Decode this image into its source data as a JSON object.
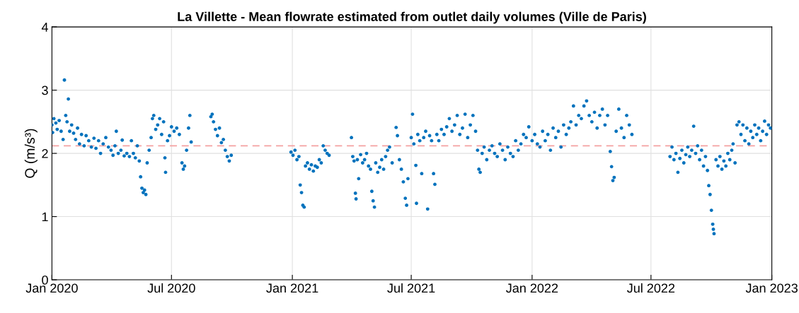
{
  "chart_data": {
    "type": "scatter",
    "title": "La Villette - Mean flowrate estimated from outlet daily volumes (Ville de Paris)",
    "ylabel": "Q (m/s³)",
    "x": [
      "2020-01-01",
      "2020-01-02",
      "2020-01-04",
      "2020-01-07",
      "2020-01-09",
      "2020-01-12",
      "2020-01-15",
      "2020-01-18",
      "2020-01-20",
      "2020-01-22",
      "2020-01-24",
      "2020-01-26",
      "2020-01-28",
      "2020-01-31",
      "2020-02-03",
      "2020-02-06",
      "2020-02-09",
      "2020-02-12",
      "2020-02-15",
      "2020-02-19",
      "2020-02-22",
      "2020-02-26",
      "2020-03-01",
      "2020-03-05",
      "2020-03-08",
      "2020-03-12",
      "2020-03-15",
      "2020-03-19",
      "2020-03-23",
      "2020-03-27",
      "2020-03-31",
      "2020-04-03",
      "2020-04-06",
      "2020-04-08",
      "2020-04-11",
      "2020-04-15",
      "2020-04-17",
      "2020-04-20",
      "2020-04-24",
      "2020-04-28",
      "2020-05-01",
      "2020-05-04",
      "2020-05-07",
      "2020-05-10",
      "2020-05-13",
      "2020-05-15",
      "2020-05-17",
      "2020-05-19",
      "2020-05-21",
      "2020-05-23",
      "2020-05-25",
      "2020-05-28",
      "2020-05-31",
      "2020-06-02",
      "2020-06-04",
      "2020-06-07",
      "2020-06-10",
      "2020-06-13",
      "2020-06-16",
      "2020-06-19",
      "2020-06-21",
      "2020-06-22",
      "2020-06-25",
      "2020-06-28",
      "2020-07-01",
      "2020-07-05",
      "2020-07-09",
      "2020-07-13",
      "2020-07-17",
      "2020-07-19",
      "2020-07-21",
      "2020-07-24",
      "2020-07-27",
      "2020-07-29",
      "2020-07-31",
      "2020-08-30",
      "2020-09-01",
      "2020-09-03",
      "2020-09-06",
      "2020-09-09",
      "2020-09-12",
      "2020-09-15",
      "2020-09-18",
      "2020-09-21",
      "2020-09-24",
      "2020-09-27",
      "2020-09-30",
      "2020-12-30",
      "2021-01-02",
      "2021-01-05",
      "2021-01-08",
      "2021-01-11",
      "2021-01-13",
      "2021-01-15",
      "2021-01-17",
      "2021-01-19",
      "2021-01-21",
      "2021-01-24",
      "2021-01-27",
      "2021-01-30",
      "2021-02-02",
      "2021-02-05",
      "2021-02-08",
      "2021-02-11",
      "2021-02-14",
      "2021-02-17",
      "2021-02-20",
      "2021-02-23",
      "2021-02-26",
      "2021-04-01",
      "2021-04-03",
      "2021-04-05",
      "2021-04-07",
      "2021-04-08",
      "2021-04-10",
      "2021-04-12",
      "2021-04-15",
      "2021-04-18",
      "2021-04-21",
      "2021-04-24",
      "2021-04-27",
      "2021-04-30",
      "2021-05-02",
      "2021-05-04",
      "2021-05-06",
      "2021-05-08",
      "2021-05-11",
      "2021-05-14",
      "2021-05-17",
      "2021-05-20",
      "2021-05-23",
      "2021-05-26",
      "2021-05-29",
      "2021-06-02",
      "2021-06-08",
      "2021-06-10",
      "2021-06-13",
      "2021-06-16",
      "2021-06-19",
      "2021-06-22",
      "2021-06-24",
      "2021-06-26",
      "2021-07-01",
      "2021-07-03",
      "2021-07-05",
      "2021-07-08",
      "2021-07-09",
      "2021-07-11",
      "2021-07-14",
      "2021-07-17",
      "2021-07-20",
      "2021-07-23",
      "2021-07-26",
      "2021-07-29",
      "2021-08-01",
      "2021-08-04",
      "2021-08-06",
      "2021-08-09",
      "2021-08-12",
      "2021-08-16",
      "2021-08-20",
      "2021-08-24",
      "2021-08-28",
      "2021-09-01",
      "2021-09-05",
      "2021-09-09",
      "2021-09-13",
      "2021-09-17",
      "2021-09-21",
      "2021-09-25",
      "2021-09-29",
      "2021-10-03",
      "2021-10-07",
      "2021-10-10",
      "2021-10-12",
      "2021-10-14",
      "2021-10-17",
      "2021-10-20",
      "2021-10-24",
      "2021-10-28",
      "2021-11-01",
      "2021-11-05",
      "2021-11-09",
      "2021-11-13",
      "2021-11-17",
      "2021-11-21",
      "2021-11-25",
      "2021-11-29",
      "2021-12-03",
      "2021-12-07",
      "2021-12-11",
      "2021-12-15",
      "2021-12-19",
      "2021-12-23",
      "2021-12-27",
      "2022-01-01",
      "2022-01-05",
      "2022-01-09",
      "2022-01-13",
      "2022-01-17",
      "2022-01-21",
      "2022-01-25",
      "2022-01-29",
      "2022-02-02",
      "2022-02-06",
      "2022-02-10",
      "2022-02-14",
      "2022-02-18",
      "2022-02-22",
      "2022-02-26",
      "2022-03-01",
      "2022-03-05",
      "2022-03-09",
      "2022-03-13",
      "2022-03-17",
      "2022-03-21",
      "2022-03-25",
      "2022-03-29",
      "2022-04-02",
      "2022-04-06",
      "2022-04-10",
      "2022-04-14",
      "2022-04-18",
      "2022-04-22",
      "2022-04-26",
      "2022-04-30",
      "2022-05-02",
      "2022-05-04",
      "2022-05-06",
      "2022-05-09",
      "2022-05-13",
      "2022-05-17",
      "2022-05-21",
      "2022-05-25",
      "2022-05-29",
      "2022-06-02",
      "2022-07-30",
      "2022-08-02",
      "2022-08-05",
      "2022-08-08",
      "2022-08-11",
      "2022-08-14",
      "2022-08-17",
      "2022-08-20",
      "2022-08-23",
      "2022-08-26",
      "2022-08-29",
      "2022-09-01",
      "2022-09-04",
      "2022-09-07",
      "2022-09-10",
      "2022-09-13",
      "2022-09-16",
      "2022-09-19",
      "2022-09-22",
      "2022-09-25",
      "2022-09-27",
      "2022-09-29",
      "2022-10-01",
      "2022-10-03",
      "2022-10-04",
      "2022-10-05",
      "2022-10-08",
      "2022-10-11",
      "2022-10-14",
      "2022-10-17",
      "2022-10-20",
      "2022-10-23",
      "2022-10-26",
      "2022-10-29",
      "2022-11-01",
      "2022-11-03",
      "2022-11-06",
      "2022-11-09",
      "2022-11-12",
      "2022-11-15",
      "2022-11-18",
      "2022-11-21",
      "2022-11-24",
      "2022-11-27",
      "2022-11-30",
      "2022-12-03",
      "2022-12-06",
      "2022-12-09",
      "2022-12-12",
      "2022-12-15",
      "2022-12-18",
      "2022-12-21",
      "2022-12-24",
      "2022-12-27",
      "2022-12-30"
    ],
    "series": [
      {
        "color": "#0072bd",
        "values": [
          2.45,
          2.33,
          2.55,
          2.48,
          2.38,
          2.52,
          2.35,
          2.22,
          3.16,
          2.6,
          2.5,
          2.86,
          2.35,
          2.45,
          2.32,
          2.22,
          2.4,
          2.15,
          2.3,
          2.12,
          2.28,
          2.2,
          2.1,
          2.24,
          2.08,
          2.2,
          2.0,
          2.15,
          2.25,
          2.1,
          2.05,
          1.97,
          2.12,
          2.35,
          2.0,
          2.05,
          2.21,
          1.96,
          2.0,
          1.95,
          2.2,
          2.0,
          1.93,
          2.12,
          1.88,
          1.63,
          1.45,
          1.38,
          1.42,
          1.35,
          1.85,
          2.05,
          2.25,
          2.55,
          2.6,
          2.38,
          2.45,
          2.55,
          2.3,
          2.5,
          1.93,
          1.7,
          2.2,
          2.28,
          2.42,
          2.35,
          2.4,
          2.3,
          1.85,
          1.75,
          1.8,
          2.05,
          2.4,
          2.6,
          2.18,
          2.58,
          2.62,
          2.5,
          2.38,
          2.28,
          2.4,
          2.17,
          2.22,
          2.05,
          1.95,
          1.88,
          1.97,
          2.02,
          1.97,
          2.05,
          1.9,
          1.95,
          1.5,
          1.38,
          1.18,
          1.15,
          1.8,
          1.85,
          1.75,
          1.82,
          1.72,
          1.8,
          1.78,
          1.9,
          1.85,
          2.12,
          2.05,
          2.0,
          1.97,
          2.25,
          1.95,
          1.88,
          1.37,
          1.28,
          1.9,
          1.6,
          1.98,
          1.85,
          1.9,
          2.0,
          1.8,
          1.75,
          1.4,
          1.25,
          1.15,
          1.85,
          1.7,
          1.78,
          1.9,
          1.75,
          1.95,
          2.05,
          2.1,
          1.85,
          2.41,
          2.28,
          1.9,
          1.75,
          1.55,
          1.29,
          1.18,
          1.6,
          2.25,
          2.62,
          2.15,
          1.81,
          1.21,
          2.3,
          2.2,
          1.68,
          2.25,
          2.35,
          1.12,
          2.28,
          2.2,
          1.68,
          1.51,
          2.3,
          2.2,
          2.38,
          2.3,
          2.42,
          2.55,
          2.35,
          2.45,
          2.6,
          2.3,
          2.4,
          2.62,
          2.25,
          2.45,
          2.6,
          2.35,
          2.05,
          1.75,
          1.7,
          2.0,
          2.1,
          1.9,
          2.05,
          2.12,
          2.0,
          1.95,
          2.15,
          2.05,
          1.9,
          2.1,
          2.0,
          1.95,
          2.2,
          2.05,
          2.15,
          2.3,
          2.25,
          2.42,
          2.2,
          2.3,
          2.15,
          2.1,
          2.35,
          2.2,
          2.3,
          2.05,
          2.4,
          2.25,
          2.35,
          2.1,
          2.45,
          2.3,
          2.4,
          2.5,
          2.75,
          2.45,
          2.6,
          2.55,
          2.75,
          2.83,
          2.6,
          2.5,
          2.65,
          2.4,
          2.6,
          2.7,
          2.45,
          2.6,
          2.03,
          1.79,
          1.57,
          1.62,
          2.35,
          2.7,
          2.4,
          2.25,
          2.6,
          2.45,
          2.3,
          1.95,
          2.1,
          1.9,
          2.0,
          1.7,
          1.92,
          2.05,
          1.85,
          1.98,
          2.1,
          1.95,
          2.05,
          2.43,
          2.0,
          2.12,
          1.9,
          2.05,
          1.8,
          1.95,
          1.73,
          1.49,
          1.35,
          1.1,
          0.88,
          0.8,
          0.73,
          1.9,
          1.8,
          1.95,
          1.75,
          1.88,
          1.8,
          2.0,
          1.9,
          2.05,
          2.15,
          1.85,
          2.45,
          2.5,
          2.3,
          2.45,
          2.2,
          2.4,
          2.15,
          2.35,
          2.25,
          2.45,
          2.3,
          2.4,
          2.2,
          2.35,
          2.51,
          2.3,
          2.45,
          2.4
        ]
      }
    ],
    "marker": "circle",
    "ref_lines": [
      {
        "axis": "y",
        "value": 2.12,
        "color": "#f4a0a0",
        "line_style": "dashed"
      }
    ],
    "xlim": [
      "2020-01-01",
      "2023-01-01"
    ],
    "xticks": [
      {
        "value": "2020-01-01",
        "label": "Jan 2020"
      },
      {
        "value": "2020-07-01",
        "label": "Jul 2020"
      },
      {
        "value": "2021-01-01",
        "label": "Jan 2021"
      },
      {
        "value": "2021-07-01",
        "label": "Jul 2021"
      },
      {
        "value": "2022-01-01",
        "label": "Jan 2022"
      },
      {
        "value": "2022-07-01",
        "label": "Jul 2022"
      },
      {
        "value": "2023-01-01",
        "label": "Jan 2023"
      }
    ],
    "ylim": [
      0,
      4
    ],
    "yticks": [
      0,
      1,
      2,
      3,
      4
    ],
    "grid": true,
    "legend": false
  }
}
